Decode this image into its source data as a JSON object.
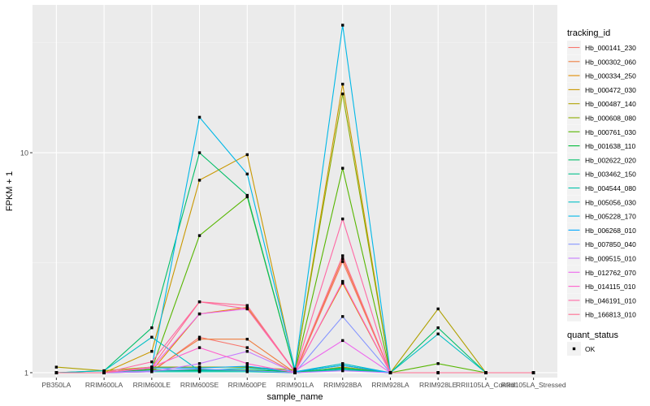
{
  "chart_data": {
    "type": "line",
    "title": "",
    "xlabel": "sample_name",
    "ylabel": "FPKM + 1",
    "y_scale": "log10",
    "ylim": [
      0.95,
      47
    ],
    "y_ticks": [
      1,
      10
    ],
    "y_tick_labels": [
      "1",
      "10"
    ],
    "grid": true,
    "legend_position": "right",
    "categories": [
      "PB350LA",
      "RRIM600LA",
      "RRIM600LE",
      "RRIM600SE",
      "RRIM600PE",
      "RRIM901LA",
      "RRIM928BA",
      "RRIM928LA",
      "RRIM928LE",
      "RRII105LA_Control",
      "RRII105LA_Stressed"
    ],
    "legend_title": "tracking_id",
    "series": [
      {
        "name": "Hb_000141_230",
        "color": "#F8766D",
        "values": [
          1,
          1,
          1.01,
          1.45,
          1.3,
          1,
          3.2,
          1,
          1,
          1,
          1
        ]
      },
      {
        "name": "Hb_000302_060",
        "color": "#EE7E40",
        "values": [
          1,
          1,
          1.02,
          1.42,
          1.42,
          1,
          3.3,
          1,
          1,
          1,
          1
        ]
      },
      {
        "name": "Hb_000334_250",
        "color": "#E08B00",
        "values": [
          1,
          1,
          1.02,
          1.85,
          1.98,
          1.01,
          2.55,
          1,
          1,
          1,
          1
        ]
      },
      {
        "name": "Hb_000472_030",
        "color": "#C99800",
        "values": [
          1,
          1,
          1.25,
          7.5,
          9.8,
          1.02,
          20.5,
          1,
          1,
          1,
          1
        ]
      },
      {
        "name": "Hb_000487_140",
        "color": "#AFA100",
        "values": [
          1.06,
          1.02,
          1.06,
          1.06,
          1.06,
          1,
          1.06,
          1,
          1.95,
          1,
          1
        ]
      },
      {
        "name": "Hb_000608_080",
        "color": "#8CAB00",
        "values": [
          1,
          1,
          1.06,
          1.06,
          1.06,
          1.03,
          18.5,
          1,
          1,
          1,
          1
        ]
      },
      {
        "name": "Hb_000761_030",
        "color": "#56B600",
        "values": [
          1,
          1,
          1.04,
          4.2,
          6.3,
          1.01,
          8.5,
          1,
          1.1,
          1,
          1
        ]
      },
      {
        "name": "Hb_001638_110",
        "color": "#00BA38",
        "values": [
          1,
          1,
          1.03,
          1.03,
          1.03,
          1.01,
          1.08,
          1,
          1,
          1,
          1
        ]
      },
      {
        "name": "Hb_002622_020",
        "color": "#00BE67",
        "values": [
          1,
          1.02,
          1.6,
          10,
          6.4,
          1.01,
          1.05,
          1,
          1.6,
          1,
          1
        ]
      },
      {
        "name": "Hb_003462_150",
        "color": "#00C08B",
        "values": [
          1,
          1,
          1.02,
          1.02,
          1.02,
          1,
          1.04,
          1,
          1,
          1,
          1
        ]
      },
      {
        "name": "Hb_004544_080",
        "color": "#00C1AB",
        "values": [
          1,
          1,
          1.01,
          1.01,
          1.01,
          1,
          1.03,
          1,
          1,
          1,
          1
        ]
      },
      {
        "name": "Hb_005056_030",
        "color": "#00BFC4",
        "values": [
          1,
          1.02,
          1.45,
          1.02,
          1.05,
          1.01,
          1.1,
          1,
          1.5,
          1,
          1
        ]
      },
      {
        "name": "Hb_005228_170",
        "color": "#00B8E7",
        "values": [
          1,
          1,
          1.06,
          14.5,
          8,
          1.04,
          38,
          1,
          1,
          1,
          1
        ]
      },
      {
        "name": "Hb_006268_010",
        "color": "#00A9FF",
        "values": [
          1,
          1,
          1.05,
          1.05,
          1.07,
          1.01,
          1.08,
          1,
          1,
          1,
          1
        ]
      },
      {
        "name": "Hb_007850_040",
        "color": "#8494FF",
        "values": [
          1,
          1,
          1.02,
          1.04,
          1.02,
          1,
          1.8,
          1,
          1,
          1,
          1
        ]
      },
      {
        "name": "Hb_009515_010",
        "color": "#C77CFF",
        "values": [
          1,
          1,
          1.01,
          1.1,
          1.25,
          1,
          1.02,
          1,
          1,
          1,
          1
        ]
      },
      {
        "name": "Hb_012762_070",
        "color": "#ED68ED",
        "values": [
          1,
          1,
          1.05,
          1.85,
          1.95,
          1.02,
          1.4,
          1,
          1,
          1,
          1
        ]
      },
      {
        "name": "Hb_014115_010",
        "color": "#FF61CC",
        "values": [
          1,
          1,
          1.06,
          1.3,
          1.1,
          1,
          2.6,
          1,
          1,
          1,
          1
        ]
      },
      {
        "name": "Hb_046191_010",
        "color": "#FF67A4",
        "values": [
          1,
          1,
          1.12,
          2.1,
          1.95,
          1.01,
          5,
          1,
          1,
          1,
          1
        ]
      },
      {
        "name": "Hb_166813_010",
        "color": "#FF6C91",
        "values": [
          1,
          1,
          1.06,
          2.1,
          2.02,
          1.01,
          3.4,
          1,
          1,
          1,
          1
        ]
      }
    ],
    "shape_legend_title": "quant_status",
    "shape_legend_items": [
      "OK"
    ]
  }
}
